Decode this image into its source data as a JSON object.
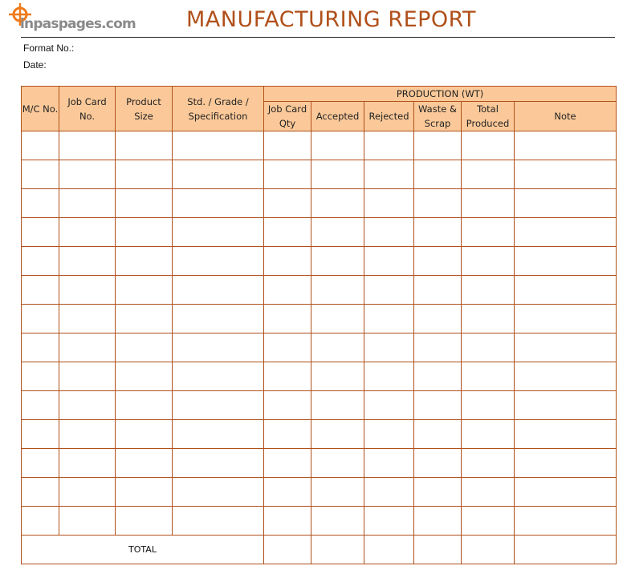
{
  "logo": {
    "text": "inpaspages.com"
  },
  "title": "MANUFACTURING REPORT",
  "fields": {
    "format_no": "Format No.:",
    "date": "Date:"
  },
  "table": {
    "columns": {
      "mc_no": "M/C No.",
      "job_card_no": "Job Card No.",
      "product_size": "Product Size",
      "spec": "Std. / Grade / Specification",
      "production_group": "PRODUCTION (WT)",
      "job_card_qty": "Job Card Qty",
      "accepted": "Accepted",
      "rejected": "Rejected",
      "waste_scrap": "Waste & Scrap",
      "total_produced": "Total Produced",
      "note": "Note"
    },
    "row_count": 14,
    "total_label": "TOTAL"
  },
  "colors": {
    "accent": "#b0501a",
    "header_fill": "#fbc999",
    "logo_orange": "#f07a1a",
    "logo_gray": "#8a8a8a"
  }
}
